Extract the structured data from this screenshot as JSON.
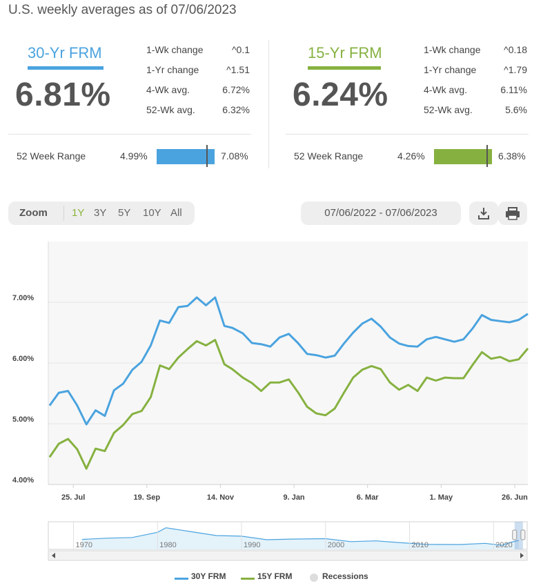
{
  "header": {
    "subtitle": "U.S. weekly averages as of 07/06/2023"
  },
  "colors": {
    "blue": "#4aa3df",
    "green": "#86b140",
    "grid": "#e6e6e6",
    "plot_bg": "#f7f7f7"
  },
  "rates": [
    {
      "name": "30-Yr FRM",
      "value": "6.81%",
      "stats": [
        {
          "label": "1-Wk change",
          "value": "0.1",
          "arrow": "up"
        },
        {
          "label": "1-Yr change",
          "value": "1.51",
          "arrow": "up"
        },
        {
          "label": "4-Wk avg.",
          "value": "6.72%"
        },
        {
          "label": "52-Wk avg.",
          "value": "6.32%"
        }
      ],
      "range": {
        "label": "52 Week Range",
        "min": "4.99%",
        "max": "7.08%",
        "current_fraction": 0.87
      }
    },
    {
      "name": "15-Yr FRM",
      "value": "6.24%",
      "stats": [
        {
          "label": "1-Wk change",
          "value": "0.18",
          "arrow": "up"
        },
        {
          "label": "1-Yr change",
          "value": "1.79",
          "arrow": "up"
        },
        {
          "label": "4-Wk avg.",
          "value": "6.11%"
        },
        {
          "label": "52-Wk avg.",
          "value": "5.6%"
        }
      ],
      "range": {
        "label": "52 Week Range",
        "min": "4.26%",
        "max": "6.38%",
        "current_fraction": 0.93
      }
    }
  ],
  "controls": {
    "zoom_label": "Zoom",
    "zoom_options": [
      "1Y",
      "3Y",
      "5Y",
      "10Y",
      "All"
    ],
    "active_zoom": "1Y",
    "date_range": "07/06/2022 - 07/06/2023",
    "download_icon": "download-icon",
    "print_icon": "print-icon"
  },
  "chart_data": {
    "type": "line",
    "ylim": [
      4.0,
      8.0
    ],
    "y_ticks": [
      "4.00%",
      "5.00%",
      "6.00%",
      "7.00%"
    ],
    "x_range": [
      "2022-07-06",
      "2023-07-06"
    ],
    "x_ticks": [
      {
        "date": "2022-07-25",
        "label": "25. Jul"
      },
      {
        "date": "2022-09-19",
        "label": "19. Sep"
      },
      {
        "date": "2022-11-14",
        "label": "14. Nov"
      },
      {
        "date": "2023-01-09",
        "label": "9. Jan"
      },
      {
        "date": "2023-03-06",
        "label": "6. Mar"
      },
      {
        "date": "2023-05-01",
        "label": "1. May"
      },
      {
        "date": "2023-06-26",
        "label": "26. Jun"
      }
    ],
    "dates": [
      "2022-07-07",
      "2022-07-14",
      "2022-07-21",
      "2022-07-28",
      "2022-08-04",
      "2022-08-11",
      "2022-08-18",
      "2022-08-25",
      "2022-09-01",
      "2022-09-08",
      "2022-09-15",
      "2022-09-22",
      "2022-09-29",
      "2022-10-06",
      "2022-10-13",
      "2022-10-20",
      "2022-10-27",
      "2022-11-03",
      "2022-11-10",
      "2022-11-17",
      "2022-11-23",
      "2022-12-01",
      "2022-12-08",
      "2022-12-15",
      "2022-12-22",
      "2022-12-29",
      "2023-01-05",
      "2023-01-12",
      "2023-01-19",
      "2023-01-26",
      "2023-02-02",
      "2023-02-09",
      "2023-02-16",
      "2023-02-23",
      "2023-03-02",
      "2023-03-09",
      "2023-03-16",
      "2023-03-23",
      "2023-03-30",
      "2023-04-06",
      "2023-04-13",
      "2023-04-20",
      "2023-04-27",
      "2023-05-04",
      "2023-05-11",
      "2023-05-18",
      "2023-05-25",
      "2023-06-01",
      "2023-06-08",
      "2023-06-15",
      "2023-06-22",
      "2023-06-29",
      "2023-07-06"
    ],
    "series": [
      {
        "name": "30Y FRM",
        "color": "#4aa3df",
        "values": [
          5.3,
          5.51,
          5.54,
          5.3,
          4.99,
          5.22,
          5.13,
          5.55,
          5.66,
          5.89,
          6.02,
          6.29,
          6.7,
          6.66,
          6.92,
          6.94,
          7.08,
          6.95,
          7.08,
          6.61,
          6.58,
          6.49,
          6.33,
          6.31,
          6.27,
          6.42,
          6.48,
          6.33,
          6.15,
          6.13,
          6.09,
          6.12,
          6.32,
          6.5,
          6.65,
          6.73,
          6.6,
          6.42,
          6.32,
          6.28,
          6.27,
          6.39,
          6.43,
          6.39,
          6.35,
          6.39,
          6.57,
          6.79,
          6.71,
          6.69,
          6.67,
          6.71,
          6.81
        ]
      },
      {
        "name": "15Y FRM",
        "color": "#86b140",
        "values": [
          4.45,
          4.67,
          4.75,
          4.58,
          4.26,
          4.59,
          4.55,
          4.85,
          4.98,
          5.16,
          5.21,
          5.44,
          5.96,
          5.9,
          6.09,
          6.23,
          6.36,
          6.29,
          6.38,
          5.98,
          5.9,
          5.76,
          5.67,
          5.54,
          5.68,
          5.68,
          5.73,
          5.52,
          5.28,
          5.17,
          5.14,
          5.25,
          5.51,
          5.76,
          5.89,
          5.95,
          5.9,
          5.68,
          5.56,
          5.64,
          5.54,
          5.76,
          5.71,
          5.76,
          5.75,
          5.75,
          5.97,
          6.18,
          6.07,
          6.1,
          6.03,
          6.06,
          6.24
        ]
      }
    ],
    "navigator": {
      "x_labels": [
        "1970",
        "1980",
        "1990",
        "2000",
        "2010",
        "2020"
      ],
      "years": [
        1971,
        1974,
        1977,
        1980,
        1981,
        1982,
        1984,
        1987,
        1990,
        1993,
        1996,
        2000,
        2003,
        2006,
        2009,
        2012,
        2016,
        2019,
        2021,
        2022,
        2023
      ],
      "values": [
        7.5,
        8.5,
        9.0,
        13.0,
        16.5,
        15.5,
        13.5,
        10.5,
        10.0,
        7.3,
        7.8,
        8.1,
        5.8,
        6.4,
        5.0,
        3.7,
        3.6,
        4.5,
        3.0,
        5.2,
        6.8
      ]
    },
    "legend": [
      {
        "name": "30Y FRM",
        "color": "#4aa3df",
        "kind": "line"
      },
      {
        "name": "15Y FRM",
        "color": "#86b140",
        "kind": "line"
      },
      {
        "name": "Recessions",
        "color": "#dddddd",
        "kind": "dot"
      }
    ]
  }
}
